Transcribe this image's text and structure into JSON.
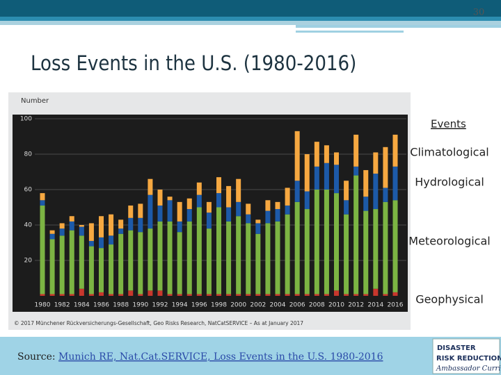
{
  "slide": {
    "page_number": "30",
    "source_prefix": "Source:",
    "source_link": "Munich RE, Nat.Cat.SERVICE, Loss Events in the U.S. 1980-2016",
    "logo_line1": "DISASTER",
    "logo_line2": "RISK REDUCTION",
    "logo_line3": "Ambassador Curriculum"
  },
  "chart_data": {
    "type": "bar",
    "stacked": true,
    "title": "Loss Events in the U.S. (1980-2016)",
    "ylabel": "Number",
    "footnote": "© 2017 Münchener Rückversicherungs-Gesellschaft, Geo Risks Research, NatCatSERVICE – As at January 2017",
    "legend_title": "Events",
    "categories": [
      "1980",
      null,
      "1982",
      null,
      "1984",
      null,
      "1986",
      null,
      "1988",
      null,
      "1990",
      null,
      "1992",
      null,
      "1994",
      null,
      "1996",
      null,
      "1998",
      null,
      "2000",
      null,
      "2002",
      null,
      "2004",
      null,
      "2006",
      null,
      "2008",
      null,
      "2010",
      null,
      "2012",
      null,
      "2014",
      null,
      "2016"
    ],
    "series": [
      {
        "name": "Geophysical",
        "color": "#c8372d",
        "values": [
          1,
          1,
          1,
          1,
          4,
          1,
          2,
          1,
          1,
          3,
          1,
          3,
          3,
          1,
          1,
          1,
          1,
          1,
          1,
          1,
          1,
          1,
          1,
          1,
          1,
          1,
          1,
          1,
          1,
          1,
          3,
          1,
          1,
          1,
          4,
          1,
          2
        ]
      },
      {
        "name": "Meteorological",
        "color": "#7cb443",
        "values": [
          50,
          31,
          33,
          36,
          30,
          27,
          25,
          28,
          34,
          34,
          35,
          35,
          39,
          41,
          35,
          41,
          49,
          37,
          49,
          41,
          44,
          40,
          34,
          40,
          41,
          45,
          52,
          48,
          59,
          59,
          55,
          45,
          67,
          47,
          45,
          52,
          52
        ]
      },
      {
        "name": "Hydrological",
        "color": "#1d5aa8",
        "values": [
          3,
          3,
          4,
          5,
          5,
          3,
          6,
          5,
          3,
          7,
          8,
          19,
          9,
          12,
          6,
          7,
          7,
          9,
          8,
          8,
          8,
          5,
          6,
          7,
          7,
          5,
          12,
          10,
          13,
          15,
          16,
          8,
          5,
          8,
          20,
          8,
          19
        ]
      },
      {
        "name": "Climatological",
        "color": "#f6a841",
        "values": [
          4,
          2,
          3,
          3,
          1,
          10,
          12,
          12,
          5,
          7,
          8,
          9,
          9,
          2,
          11,
          6,
          7,
          6,
          9,
          12,
          13,
          6,
          2,
          6,
          4,
          10,
          28,
          21,
          14,
          10,
          7,
          11,
          18,
          15,
          12,
          23,
          18
        ]
      }
    ],
    "ylim": [
      0,
      100
    ],
    "yticks": [
      20,
      40,
      60,
      80,
      100
    ],
    "grid": true
  }
}
